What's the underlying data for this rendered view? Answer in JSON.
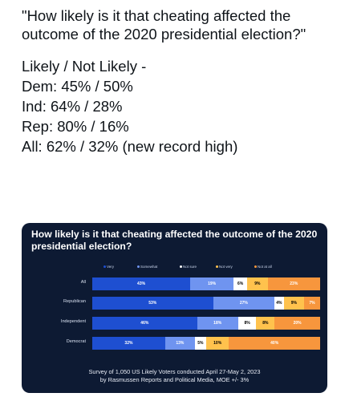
{
  "post": {
    "quote": "\"How likely is it that cheating affected the outcome of the 2020 presidential election?\"",
    "lines": [
      "Likely / Not Likely -",
      "Dem: 45% / 50%",
      "Ind: 64% / 28%",
      "Rep: 80% / 16%",
      "All: 62% / 32%   (new record high)"
    ]
  },
  "chart_data": {
    "type": "bar",
    "stacked": true,
    "orientation": "horizontal",
    "title": "How likely is it that cheating affected the outcome of the 2020 presidential election?",
    "legend": [
      {
        "name": "Very",
        "color": "#1e4fd1"
      },
      {
        "name": "Somewhat",
        "color": "#6f94f0"
      },
      {
        "name": "Not sure",
        "color": "#ffffff"
      },
      {
        "name": "Not very",
        "color": "#ffc24d"
      },
      {
        "name": "Not at all",
        "color": "#f7963d"
      }
    ],
    "legend_labels": [
      "Very",
      "Somewhat",
      "Not sure",
      "Not very",
      "Not at all"
    ],
    "categories": [
      "All",
      "Republican",
      "Independent",
      "Democrat"
    ],
    "series": [
      {
        "name": "Very",
        "values": [
          43,
          53,
          46,
          32
        ],
        "color": "#1e4fd1",
        "text_color": "#ffffff"
      },
      {
        "name": "Somewhat",
        "values": [
          19,
          27,
          18,
          13
        ],
        "color": "#6f94f0",
        "text_color": "#ffffff"
      },
      {
        "name": "Not sure",
        "values": [
          6,
          4,
          8,
          5
        ],
        "color": "#ffffff",
        "text_color": "#000000"
      },
      {
        "name": "Not very",
        "values": [
          9,
          9,
          8,
          10
        ],
        "color": "#ffc24d",
        "text_color": "#000000"
      },
      {
        "name": "Not at all",
        "values": [
          23,
          7,
          20,
          40
        ],
        "color": "#f7963d",
        "text_color": "#ffffff"
      }
    ],
    "footer_lines": [
      "Survey of 1,050 US Likely Voters conducted April 27-May 2, 2023",
      "by Rasmussen Reports and Political Media, MOE +/- 3%"
    ]
  }
}
